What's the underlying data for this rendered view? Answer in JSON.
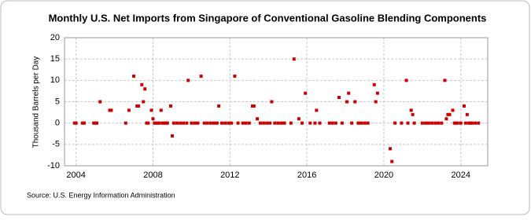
{
  "chart_data": {
    "type": "scatter",
    "title": "Monthly U.S. Net Imports from Singapore of Conventional Gasoline Blending Components",
    "y_label": "Thousand Barrels per Day",
    "source": "Source: U.S. Energy Information Administration",
    "xlim": [
      2003.4,
      2025.4
    ],
    "xticks": [
      2004,
      2008,
      2012,
      2016,
      2020,
      2024
    ],
    "ylim": [
      -10,
      20
    ],
    "yticks": [
      -10,
      -5,
      0,
      5,
      10,
      15,
      20
    ],
    "grid": true,
    "series": [
      {
        "color": "#cc0000",
        "x": [
          2003.92,
          2004.0,
          2004.33,
          2004.42,
          2004.92,
          2005.0,
          2005.08,
          2005.25,
          2005.75,
          2005.83,
          2006.58,
          2006.75,
          2007.0,
          2007.17,
          2007.25,
          2007.42,
          2007.5,
          2007.58,
          2007.67,
          2007.75,
          2007.92,
          2008.0,
          2008.08,
          2008.17,
          2008.25,
          2008.33,
          2008.42,
          2008.5,
          2008.58,
          2008.67,
          2008.75,
          2008.92,
          2009.0,
          2009.08,
          2009.25,
          2009.42,
          2009.58,
          2009.75,
          2009.83,
          2010.0,
          2010.17,
          2010.33,
          2010.5,
          2010.67,
          2010.83,
          2011.0,
          2011.17,
          2011.33,
          2011.42,
          2011.58,
          2011.75,
          2011.92,
          2012.08,
          2012.25,
          2012.42,
          2012.67,
          2012.83,
          2013.0,
          2013.17,
          2013.25,
          2013.42,
          2013.58,
          2013.75,
          2013.92,
          2014.08,
          2014.17,
          2014.33,
          2014.5,
          2014.67,
          2014.83,
          2015.17,
          2015.33,
          2015.58,
          2015.75,
          2015.92,
          2016.17,
          2016.42,
          2016.5,
          2016.67,
          2017.17,
          2017.33,
          2017.5,
          2017.67,
          2017.83,
          2018.08,
          2018.17,
          2018.33,
          2018.5,
          2018.67,
          2018.83,
          2019.0,
          2019.17,
          2019.5,
          2019.58,
          2019.67,
          2020.33,
          2020.42,
          2020.58,
          2020.92,
          2021.17,
          2021.25,
          2021.42,
          2021.5,
          2021.58,
          2022.0,
          2022.17,
          2022.33,
          2022.5,
          2022.67,
          2022.83,
          2023.0,
          2023.17,
          2023.25,
          2023.33,
          2023.42,
          2023.58,
          2023.67,
          2023.75,
          2023.83,
          2024.0,
          2024.17,
          2024.25,
          2024.33,
          2024.42,
          2024.5,
          2024.58,
          2024.75,
          2024.92
        ],
        "values": [
          0,
          0,
          0,
          0,
          0,
          0,
          0,
          5,
          3,
          3,
          0,
          3,
          11,
          4,
          4,
          9,
          5,
          8,
          0,
          0,
          3,
          1,
          0,
          0,
          0,
          0,
          3,
          0,
          0,
          0,
          0,
          4,
          -3,
          0,
          0,
          0,
          0,
          0,
          10,
          0,
          0,
          0,
          11,
          0,
          0,
          0,
          0,
          0,
          4,
          0,
          0,
          0,
          0,
          11,
          0,
          0,
          0,
          0,
          4,
          4,
          1,
          0,
          0,
          0,
          0,
          5,
          0,
          0,
          0,
          0,
          0,
          15,
          1,
          0,
          7,
          0,
          0,
          3,
          0,
          0,
          0,
          0,
          6,
          0,
          5,
          7,
          0,
          5,
          0,
          0,
          0,
          0,
          9,
          5,
          7,
          -6,
          -9,
          0,
          0,
          10,
          0,
          3,
          2,
          0,
          0,
          0,
          0,
          0,
          0,
          0,
          0,
          10,
          1,
          2,
          2,
          3,
          0,
          0,
          0,
          0,
          4,
          0,
          2,
          0,
          0,
          0,
          0,
          0
        ]
      }
    ]
  }
}
